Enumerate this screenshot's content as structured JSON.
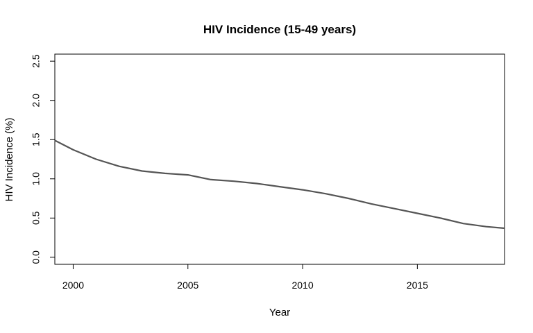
{
  "chart_data": {
    "type": "line",
    "title": "HIV Incidence (15-49 years)",
    "xlabel": "Year",
    "ylabel": "HIV Incidence (%)",
    "xlim": [
      1999.2,
      2018.8
    ],
    "ylim": [
      -0.09,
      2.59
    ],
    "xticks": [
      2000,
      2005,
      2010,
      2015
    ],
    "yticks": [
      0.0,
      0.5,
      1.0,
      1.5,
      2.0,
      2.5
    ],
    "xtick_labels": [
      "2000",
      "2005",
      "2010",
      "2015"
    ],
    "ytick_labels": [
      "0.0",
      "0.5",
      "1.0",
      "1.5",
      "2.0",
      "2.5"
    ],
    "grid": false,
    "legend": "none",
    "line_color": "#555555",
    "series": [
      {
        "x": [
          1999.2,
          2000,
          2001,
          2002,
          2003,
          2004,
          2005,
          2006,
          2007,
          2008,
          2009,
          2010,
          2011,
          2012,
          2013,
          2014,
          2015,
          2016,
          2017,
          2018,
          2018.8
        ],
        "values": [
          1.49,
          1.37,
          1.25,
          1.16,
          1.1,
          1.07,
          1.05,
          0.99,
          0.97,
          0.94,
          0.9,
          0.86,
          0.81,
          0.75,
          0.68,
          0.62,
          0.56,
          0.5,
          0.43,
          0.39,
          0.37
        ]
      }
    ]
  }
}
